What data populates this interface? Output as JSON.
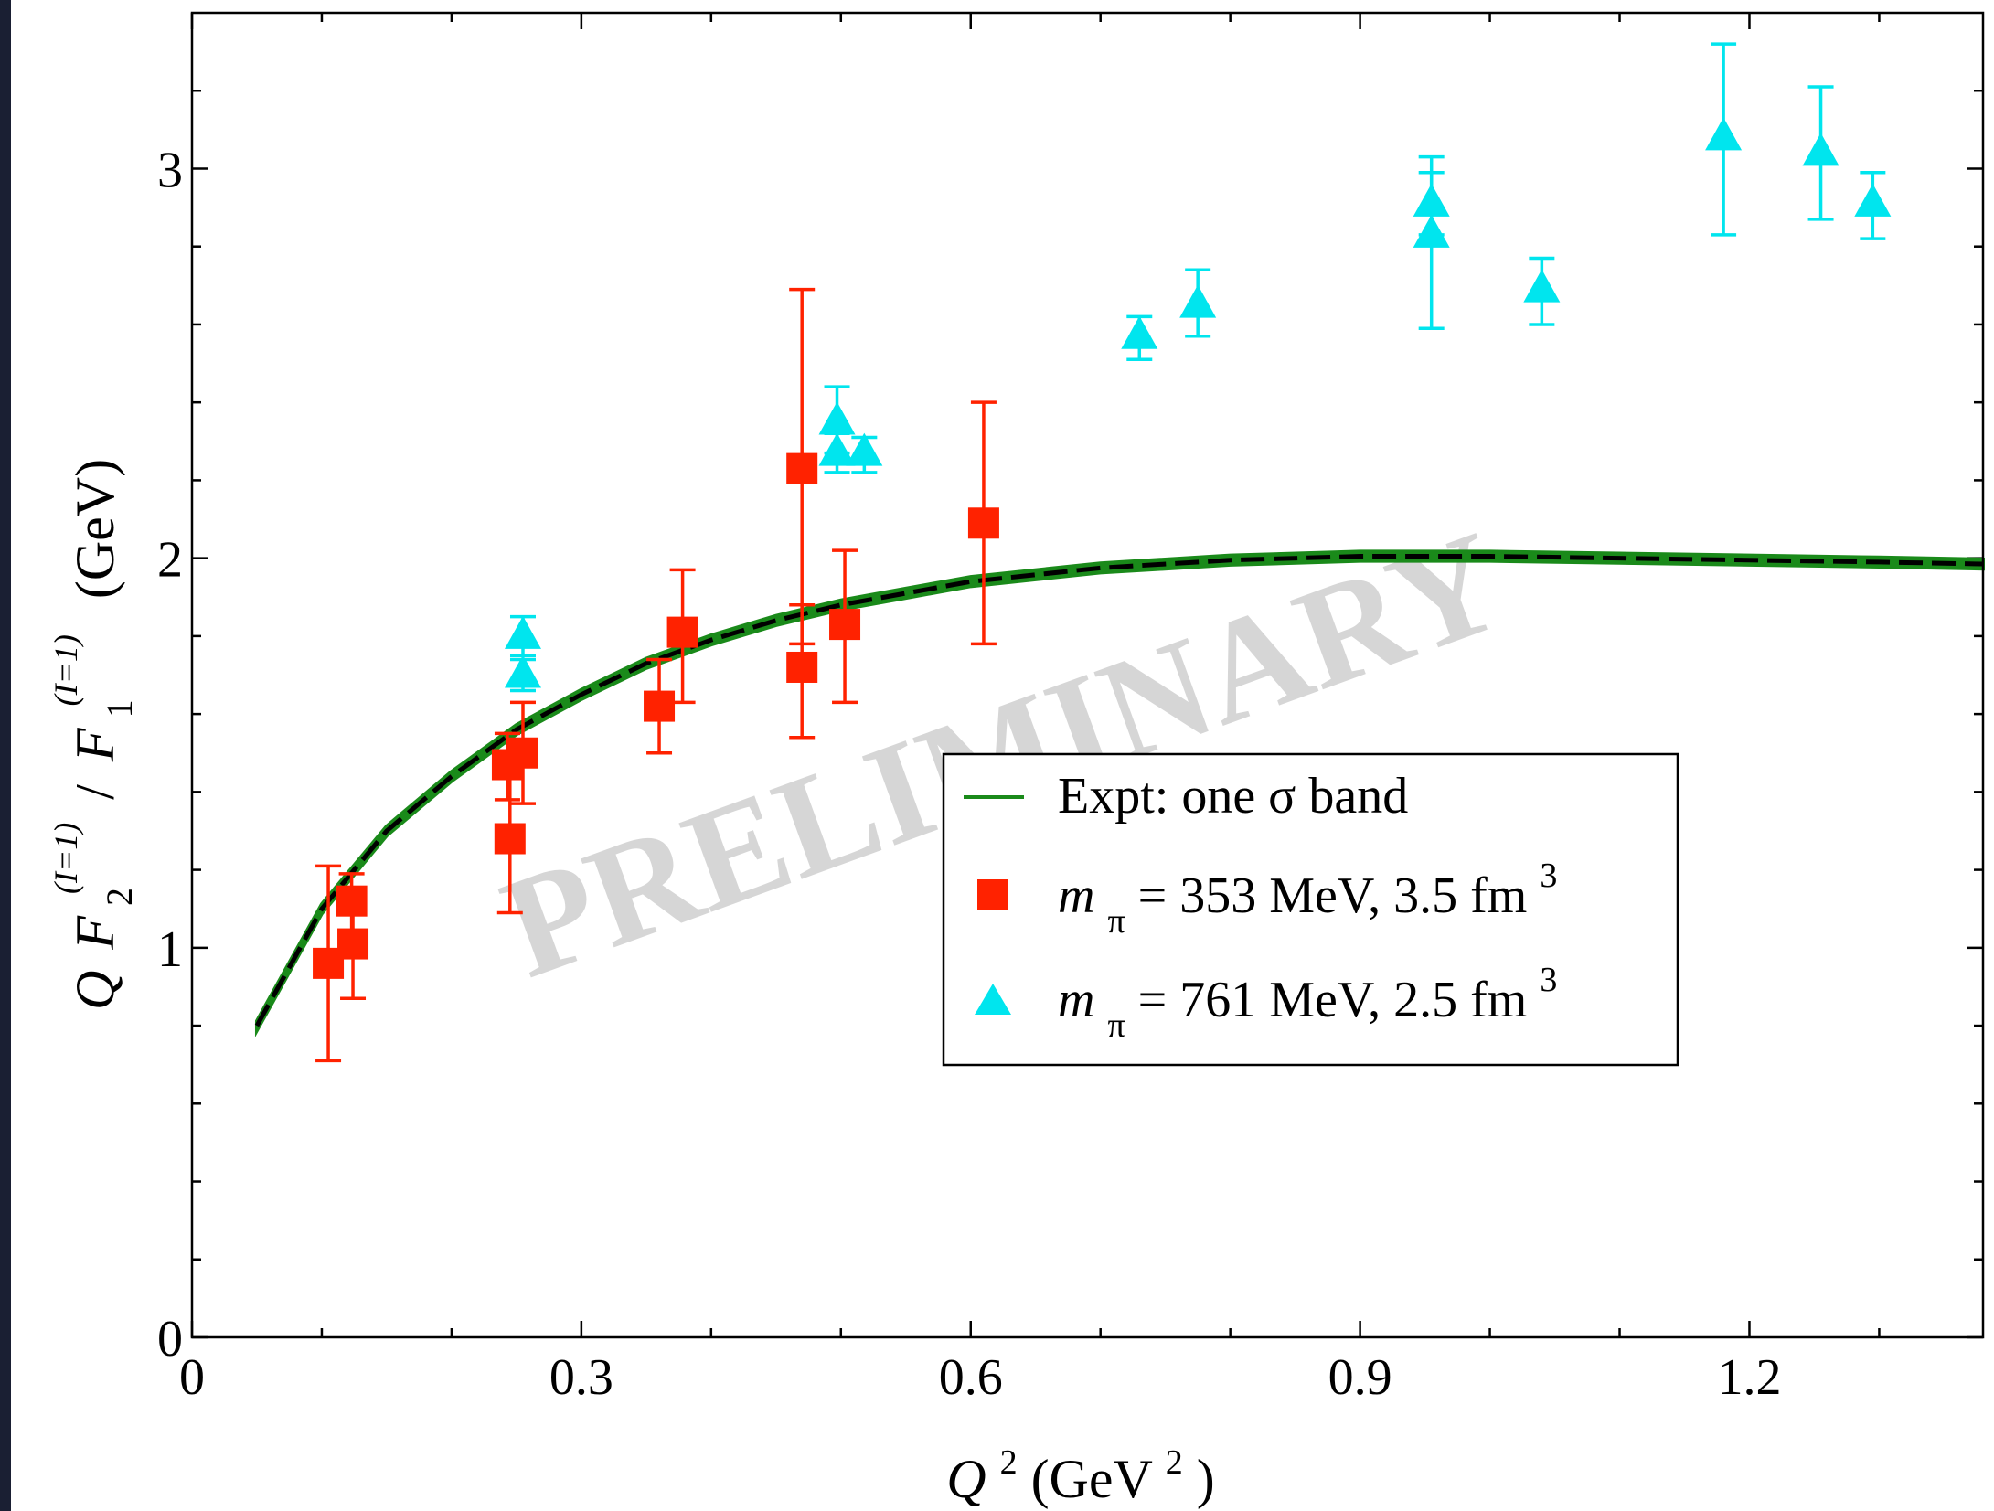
{
  "chart_data": {
    "type": "scatter",
    "watermark": "PRELIMINARY",
    "xlim": [
      0,
      1.38
    ],
    "ylim": [
      0,
      3.4
    ],
    "x_ticks": [
      {
        "value": 0,
        "label": "0"
      },
      {
        "value": 0.3,
        "label": "0.3"
      },
      {
        "value": 0.6,
        "label": "0.6"
      },
      {
        "value": 0.9,
        "label": "0.9"
      },
      {
        "value": 1.2,
        "label": "1.2"
      }
    ],
    "x_minor_ticks": [
      0.1,
      0.2,
      0.4,
      0.5,
      0.7,
      0.8,
      1.0,
      1.1,
      1.3
    ],
    "y_ticks": [
      {
        "value": 0,
        "label": "0"
      },
      {
        "value": 1,
        "label": "1"
      },
      {
        "value": 2,
        "label": "2"
      },
      {
        "value": 3,
        "label": "3"
      }
    ],
    "y_minor_ticks": [
      0.2,
      0.4,
      0.6,
      0.8,
      1.2,
      1.4,
      1.6,
      1.8,
      2.2,
      2.4,
      2.6,
      2.8,
      3.2
    ],
    "xlabel": {
      "q": "Q",
      "sup": "2",
      "rest": " (GeV",
      "unit_sup": "2",
      "close": ")"
    },
    "ylabel": {
      "q": "Q",
      "f2": "F",
      "f2_sub": "2",
      "f2_sup": "(I=1)",
      "slash": "/",
      "f1": "F",
      "f1_sub": "1",
      "f1_sup": "(I=1)",
      "unit": "(GeV)"
    },
    "legend": {
      "position": "center-right",
      "entries": [
        {
          "text": "Expt: one σ band",
          "marker": "line",
          "color": "#1a8a1a"
        },
        {
          "m": "m",
          "pi": "π",
          "rest": " = 353 MeV, 3.5 fm",
          "sup": "3",
          "marker": "square",
          "color": "#ff2200"
        },
        {
          "m": "m",
          "pi": "π",
          "rest": " = 761 MeV, 2.5 fm",
          "sup": "3",
          "marker": "triangle",
          "color": "#00e5ee"
        }
      ]
    },
    "band": {
      "name": "Expt: one σ band",
      "color": "#1a8a1a",
      "x": [
        0.05,
        0.1,
        0.15,
        0.2,
        0.25,
        0.3,
        0.35,
        0.4,
        0.45,
        0.5,
        0.55,
        0.6,
        0.7,
        0.8,
        0.9,
        1.0,
        1.1,
        1.2,
        1.3,
        1.38
      ],
      "y": [
        0.8,
        1.1,
        1.3,
        1.44,
        1.56,
        1.65,
        1.73,
        1.79,
        1.84,
        1.88,
        1.91,
        1.94,
        1.975,
        1.995,
        2.005,
        2.005,
        2.0,
        1.995,
        1.99,
        1.985
      ],
      "half_width": 0.012
    },
    "series": [
      {
        "name": "m_π = 353 MeV, 3.5 fm^3",
        "marker": "square",
        "color": "#ff2200",
        "points": [
          {
            "x": 0.105,
            "y": 0.96,
            "lo": 0.71,
            "hi": 1.21
          },
          {
            "x": 0.123,
            "y": 1.12,
            "lo": 1.04,
            "hi": 1.19
          },
          {
            "x": 0.124,
            "y": 1.01,
            "lo": 0.87,
            "hi": 1.15
          },
          {
            "x": 0.243,
            "y": 1.47,
            "lo": 1.38,
            "hi": 1.55
          },
          {
            "x": 0.245,
            "y": 1.28,
            "lo": 1.09,
            "hi": 1.47
          },
          {
            "x": 0.255,
            "y": 1.5,
            "lo": 1.37,
            "hi": 1.63
          },
          {
            "x": 0.36,
            "y": 1.62,
            "lo": 1.5,
            "hi": 1.74
          },
          {
            "x": 0.378,
            "y": 1.81,
            "lo": 1.63,
            "hi": 1.97
          },
          {
            "x": 0.47,
            "y": 2.23,
            "lo": 1.78,
            "hi": 2.69
          },
          {
            "x": 0.47,
            "y": 1.72,
            "lo": 1.54,
            "hi": 1.88
          },
          {
            "x": 0.503,
            "y": 1.83,
            "lo": 1.63,
            "hi": 2.02
          },
          {
            "x": 0.61,
            "y": 2.09,
            "lo": 1.78,
            "hi": 2.4
          }
        ]
      },
      {
        "name": "m_π = 761 MeV, 2.5 fm^3",
        "marker": "triangle",
        "color": "#00e5ee",
        "points": [
          {
            "x": 0.255,
            "y": 1.8,
            "lo": 1.75,
            "hi": 1.85
          },
          {
            "x": 0.255,
            "y": 1.7,
            "lo": 1.66,
            "hi": 1.74
          },
          {
            "x": 0.497,
            "y": 2.35,
            "lo": 2.27,
            "hi": 2.44
          },
          {
            "x": 0.497,
            "y": 2.27,
            "lo": 2.22,
            "hi": 2.32
          },
          {
            "x": 0.518,
            "y": 2.27,
            "lo": 2.22,
            "hi": 2.31
          },
          {
            "x": 0.73,
            "y": 2.57,
            "lo": 2.51,
            "hi": 2.62
          },
          {
            "x": 0.775,
            "y": 2.65,
            "lo": 2.57,
            "hi": 2.74
          },
          {
            "x": 0.955,
            "y": 2.91,
            "lo": 2.83,
            "hi": 2.99
          },
          {
            "x": 0.955,
            "y": 2.83,
            "lo": 2.59,
            "hi": 3.03
          },
          {
            "x": 1.04,
            "y": 2.69,
            "lo": 2.6,
            "hi": 2.77
          },
          {
            "x": 1.18,
            "y": 3.08,
            "lo": 2.83,
            "hi": 3.32
          },
          {
            "x": 1.255,
            "y": 3.04,
            "lo": 2.87,
            "hi": 3.21
          },
          {
            "x": 1.295,
            "y": 2.91,
            "lo": 2.82,
            "hi": 2.99
          }
        ]
      }
    ]
  }
}
